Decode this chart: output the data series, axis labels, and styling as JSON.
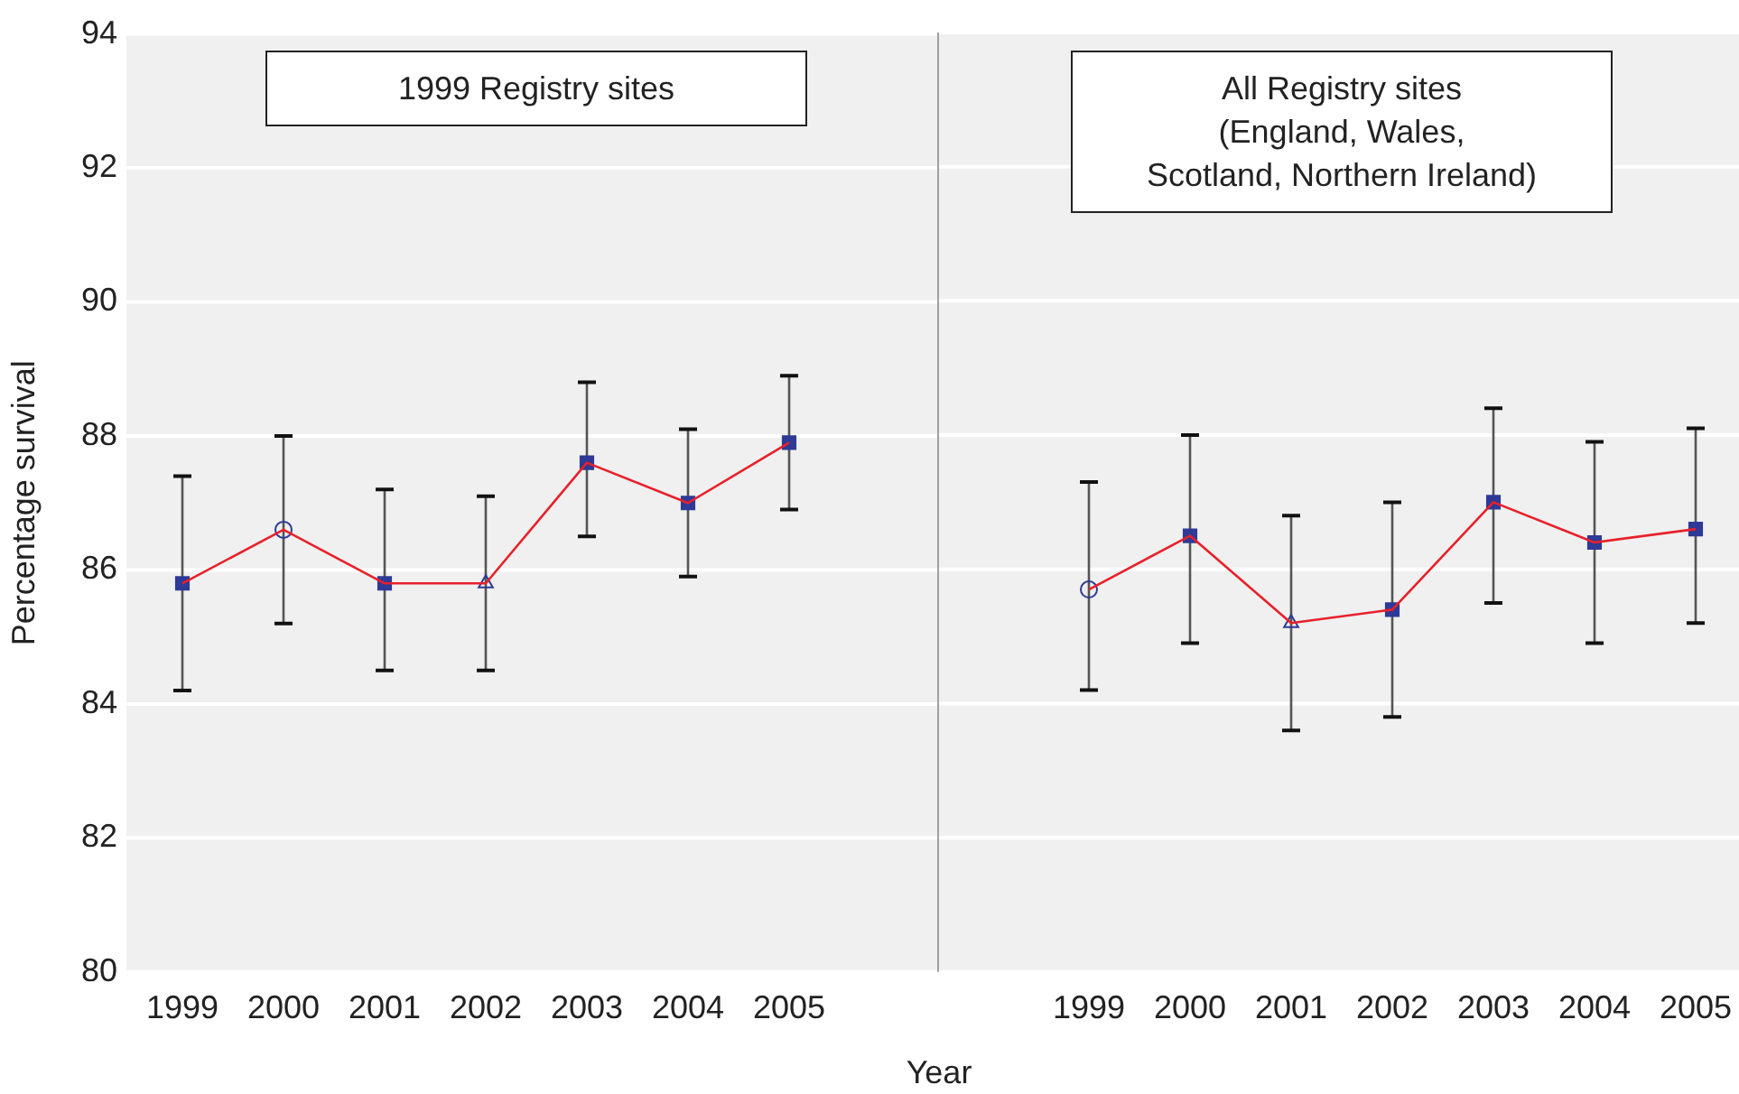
{
  "chart_data": [
    {
      "type": "line",
      "title": "1999 Registry sites",
      "categories": [
        "1999",
        "2000",
        "2001",
        "2002",
        "2003",
        "2004",
        "2005"
      ],
      "ylabel": "Percentage survival",
      "xlabel": "Year",
      "ylim": [
        80,
        94
      ],
      "yticks": [
        80,
        82,
        84,
        86,
        88,
        90,
        92,
        94
      ],
      "grid": "y",
      "legend": false,
      "series": [
        {
          "type": "line",
          "color": "#e8202a",
          "marker": "none",
          "values": [
            85.8,
            86.6,
            85.8,
            85.8,
            87.6,
            87.0,
            87.9
          ],
          "errors": [
            [
              84.2,
              87.4
            ],
            [
              85.2,
              88.0
            ],
            [
              84.5,
              87.2
            ],
            [
              84.5,
              87.1
            ],
            [
              86.5,
              88.8
            ],
            [
              85.9,
              88.1
            ],
            [
              86.9,
              88.9
            ]
          ]
        },
        {
          "type": "scatter",
          "color": "#2e3a96",
          "marker": "square",
          "values": [
            85.8,
            null,
            85.8,
            null,
            87.6,
            87.0,
            87.9
          ]
        },
        {
          "type": "scatter",
          "color": "#2e3a96",
          "marker": "circle",
          "values": [
            null,
            86.6,
            null,
            null,
            null,
            null,
            null
          ]
        },
        {
          "type": "scatter",
          "color": "#2e3a96",
          "marker": "triangle",
          "values": [
            null,
            null,
            null,
            85.8,
            null,
            null,
            null
          ]
        }
      ]
    },
    {
      "type": "line",
      "title": "All Registry sites\n(England, Wales,\nScotland, Northern Ireland)",
      "categories": [
        "1999",
        "2000",
        "2001",
        "2002",
        "2003",
        "2004",
        "2005"
      ],
      "ylim": [
        80,
        94
      ],
      "yticks": [
        80,
        82,
        84,
        86,
        88,
        90,
        92,
        94
      ],
      "grid": "y",
      "legend": false,
      "tick_labels": "x",
      "series": [
        {
          "type": "line",
          "color": "#e8202a",
          "marker": "none",
          "values": [
            85.7,
            86.5,
            85.2,
            85.4,
            87.0,
            86.4,
            86.6
          ],
          "errors": [
            [
              84.2,
              87.3
            ],
            [
              84.9,
              88.0
            ],
            [
              83.6,
              86.8
            ],
            [
              83.8,
              87.0
            ],
            [
              85.5,
              88.4
            ],
            [
              84.9,
              87.9
            ],
            [
              85.2,
              88.1
            ]
          ]
        },
        {
          "type": "scatter",
          "color": "#2e3a96",
          "marker": "square",
          "values": [
            null,
            86.5,
            null,
            85.4,
            87.0,
            86.4,
            86.6
          ]
        },
        {
          "type": "scatter",
          "color": "#2e3a96",
          "marker": "circle",
          "values": [
            85.7,
            null,
            null,
            null,
            null,
            null,
            null
          ]
        },
        {
          "type": "scatter",
          "color": "#2e3a96",
          "marker": "triangle",
          "values": [
            null,
            null,
            85.2,
            null,
            null,
            null,
            null
          ]
        }
      ]
    }
  ]
}
